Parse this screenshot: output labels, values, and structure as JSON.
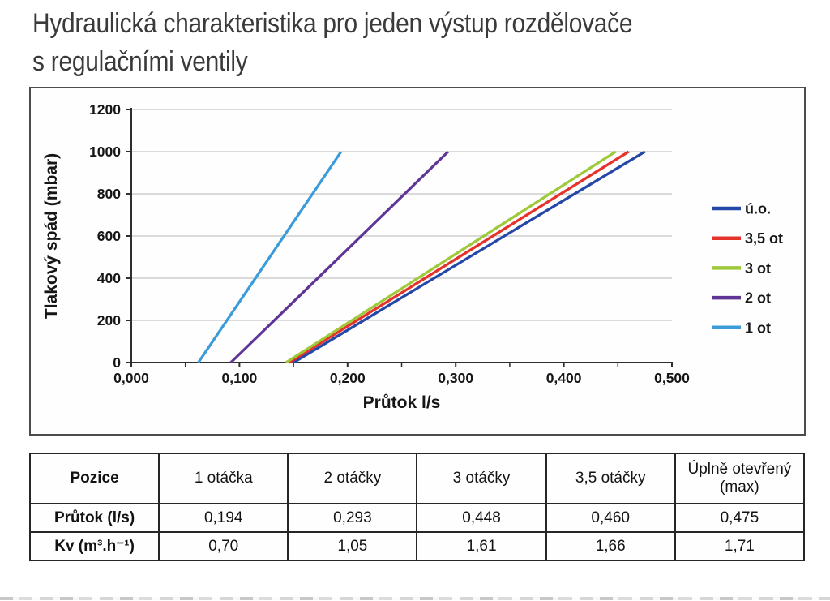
{
  "page": {
    "title_line1": "Hydraulická charakteristika pro jeden výstup rozdělovače",
    "title_line2": "s regulačními ventily"
  },
  "chart_data": {
    "type": "line",
    "title": "",
    "xlabel": "Průtok l/s",
    "ylabel": "Tlakový spád (mbar)",
    "xlim": [
      0,
      0.5
    ],
    "ylim": [
      0,
      1200
    ],
    "x_ticks": [
      0,
      0.1,
      0.2,
      0.3,
      0.4,
      0.5
    ],
    "x_tick_labels": [
      "0,000",
      "0,100",
      "0,200",
      "0,300",
      "0,400",
      "0,500"
    ],
    "y_ticks": [
      0,
      200,
      400,
      600,
      800,
      1000,
      1200
    ],
    "y_tick_labels": [
      "0",
      "200",
      "400",
      "600",
      "800",
      "1000",
      "1200"
    ],
    "grid": true,
    "legend_position": "right-inside",
    "axis_color": "#2e2e2e",
    "grid_color": "#b5b5b5",
    "series": [
      {
        "name": "ú.o.",
        "color": "#2447a8",
        "points": [
          [
            0.15,
            0
          ],
          [
            0.475,
            1000
          ]
        ]
      },
      {
        "name": "3,5 ot",
        "color": "#e5322a",
        "points": [
          [
            0.146,
            0
          ],
          [
            0.46,
            1000
          ]
        ]
      },
      {
        "name": "3 ot",
        "color": "#9dc93a",
        "points": [
          [
            0.143,
            0
          ],
          [
            0.448,
            1000
          ]
        ]
      },
      {
        "name": "2 ot",
        "color": "#5f3595",
        "points": [
          [
            0.092,
            0
          ],
          [
            0.293,
            1000
          ]
        ]
      },
      {
        "name": "1 ot",
        "color": "#3b9cd9",
        "points": [
          [
            0.062,
            0
          ],
          [
            0.194,
            1000
          ]
        ]
      }
    ]
  },
  "table": {
    "header": [
      "Pozice",
      "1 otáčka",
      "2 otáčky",
      "3 otáčky",
      "3,5 otáčky",
      "Úplně otevřený\n(max)"
    ],
    "rows": [
      {
        "label": "Průtok (l/s)",
        "values": [
          "0,194",
          "0,293",
          "0,448",
          "0,460",
          "0,475"
        ]
      },
      {
        "label": "Kv (m³.h⁻¹)",
        "values": [
          "0,70",
          "1,05",
          "1,61",
          "1,66",
          "1,71"
        ]
      }
    ]
  }
}
